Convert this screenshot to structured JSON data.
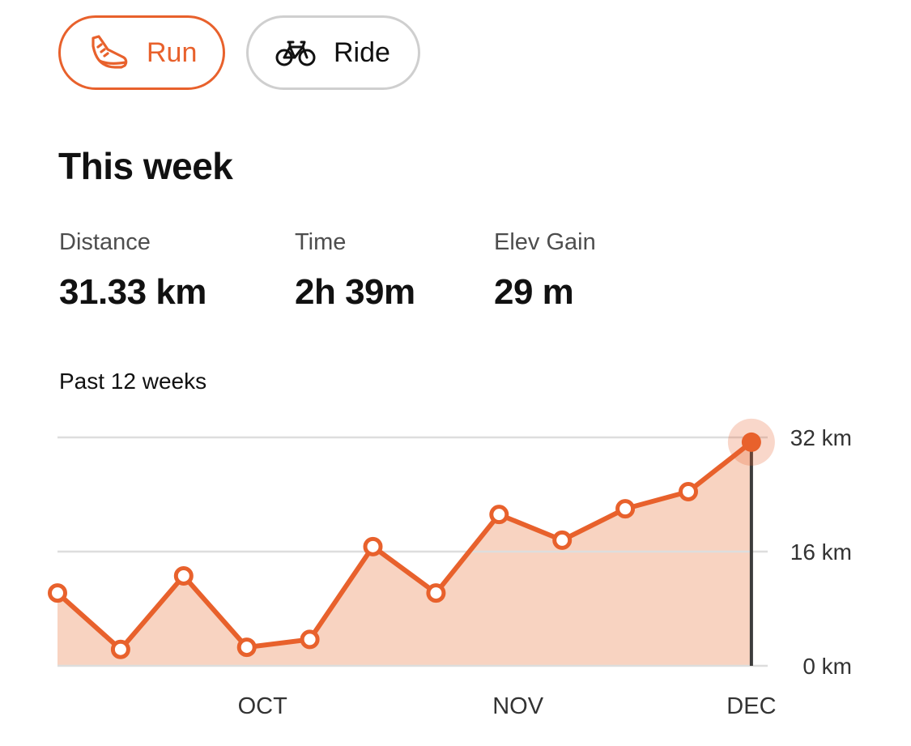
{
  "filters": {
    "run_label": "Run",
    "ride_label": "Ride",
    "selected": "Run"
  },
  "summary": {
    "title": "This week",
    "stats": [
      {
        "label": "Distance",
        "value": "31.33 km"
      },
      {
        "label": "Time",
        "value": "2h 39m"
      },
      {
        "label": "Elev Gain",
        "value": "29 m"
      }
    ]
  },
  "chart": {
    "label": "Past 12 weeks"
  },
  "colors": {
    "accent": "#e8612c",
    "area_fill": "#f8d3c1",
    "grid": "#dddddd",
    "inactive_border": "#cfcfcf"
  },
  "chart_data": {
    "type": "area",
    "x": [
      "wk1",
      "wk2",
      "wk3",
      "wk4",
      "wk5",
      "wk6",
      "wk7",
      "wk8",
      "wk9",
      "wk10",
      "wk11",
      "wk12"
    ],
    "values": [
      10.2,
      2.3,
      12.6,
      2.6,
      3.7,
      16.7,
      10.2,
      21.2,
      17.6,
      22.0,
      24.4,
      31.33
    ],
    "ylim": [
      0,
      32
    ],
    "y_ticks": [
      0,
      16,
      32
    ],
    "y_tick_labels": [
      "0 km",
      "16 km",
      "32 km"
    ],
    "x_tick_labels": [
      "OCT",
      "NOV",
      "DEC"
    ],
    "x_tick_positions": [
      3.25,
      7.3,
      11.0
    ],
    "highlight_index": 11,
    "grid": true,
    "title": "",
    "xlabel": "",
    "ylabel": ""
  }
}
